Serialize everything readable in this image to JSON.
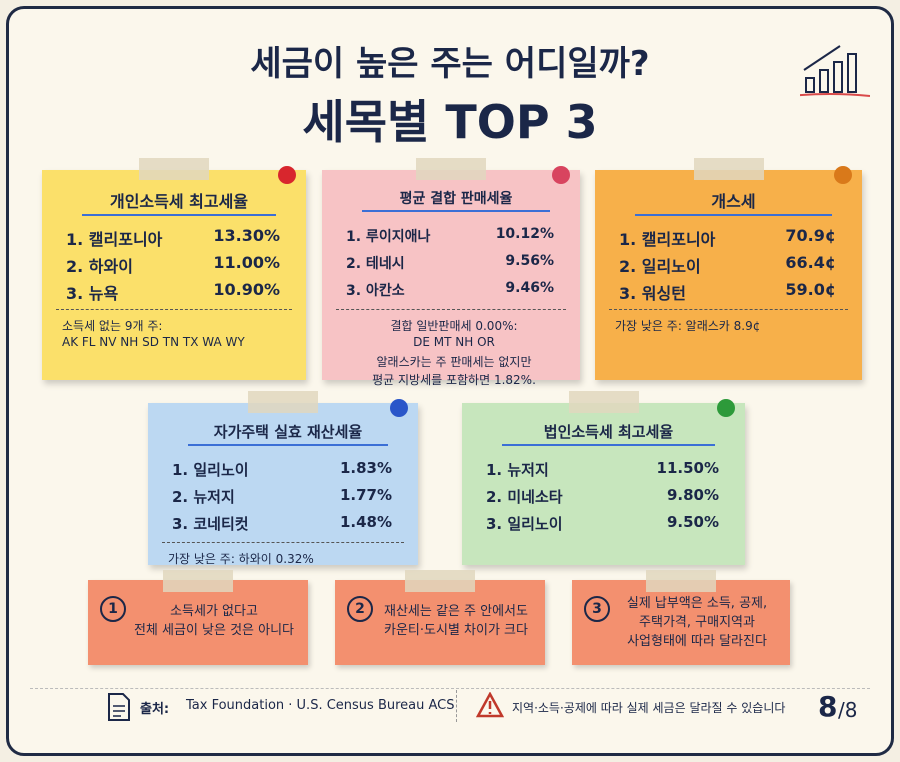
{
  "header": {
    "title": "세금이 높은 주는 어디일까?",
    "subtitle": "세목별 TOP 3"
  },
  "cards": [
    {
      "title": "개인소득세 최고세율",
      "rows": [
        [
          "1. 캘리포니아",
          "13.30%"
        ],
        [
          "2. 하와이",
          "11.00%"
        ],
        [
          "3. 뉴욕",
          "10.90%"
        ]
      ],
      "notes": [
        "소득세 없는 9개 주:",
        "AK  FL  NV  NH  SD  TN  TX  WA  WY"
      ]
    },
    {
      "title": "평균 결합 판매세율",
      "rows": [
        [
          "1. 루이지애나",
          "10.12%"
        ],
        [
          "2. 테네시",
          "9.56%"
        ],
        [
          "3. 아칸소",
          "9.46%"
        ]
      ],
      "notes": [
        "결합 일반판매세 0.00%:",
        "DE   MT   NH   OR",
        "알래스카는 주 판매세는 없지만",
        "평균 지방세를 포함하면 1.82%."
      ]
    },
    {
      "title": "개스세",
      "rows": [
        [
          "1. 캘리포니아",
          "70.9¢"
        ],
        [
          "2. 일리노이",
          "66.4¢"
        ],
        [
          "3. 워싱턴",
          "59.0¢"
        ]
      ],
      "notes": [
        "가장 낮은 주: 알래스카  8.9¢"
      ]
    },
    {
      "title": "자가주택 실효 재산세율",
      "rows": [
        [
          "1. 일리노이",
          "1.83%"
        ],
        [
          "2. 뉴저지",
          "1.77%"
        ],
        [
          "3. 코네티컷",
          "1.48%"
        ]
      ],
      "notes": [
        "가장 낮은 주: 하와이  0.32%"
      ]
    },
    {
      "title": "법인소득세 최고세율",
      "rows": [
        [
          "1. 뉴저지",
          "11.50%"
        ],
        [
          "2. 미네소타",
          "9.80%"
        ],
        [
          "3. 일리노이",
          "9.50%"
        ]
      ],
      "notes": []
    }
  ],
  "tips": [
    {
      "number": "1",
      "lines": [
        "소득세가 없다고",
        "전체 세금이 낮은 것은 아니다"
      ]
    },
    {
      "number": "2",
      "lines": [
        "재산세는 같은 주 안에서도",
        "카운티·도시별 차이가 크다"
      ]
    },
    {
      "number": "3",
      "lines": [
        "실제 납부액은 소득, 공제,",
        "주택가격, 구매지역과",
        "사업형태에 따라 달라진다"
      ]
    }
  ],
  "footer": {
    "source_label": "출처:",
    "source": "Tax Foundation · U.S. Census Bureau ACS",
    "warning": "지역·소득·공제에 따라 실제 세금은 달라질 수 있습니다",
    "page": "8",
    "total": "/8"
  }
}
